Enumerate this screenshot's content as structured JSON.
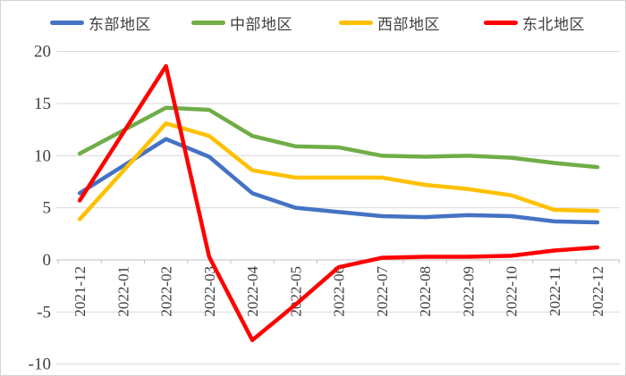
{
  "chart_data": {
    "type": "line",
    "title": "",
    "xlabel": "",
    "ylabel": "",
    "categories": [
      "2021-12",
      "2022-01",
      "2022-02",
      "2022-03",
      "2022-04",
      "2022-05",
      "2022-06",
      "2022-07",
      "2022-08",
      "2022-09",
      "2022-10",
      "2022-11",
      "2022-12"
    ],
    "series": [
      {
        "name": "东部地区",
        "color": "#4472C4",
        "values": [
          6.4,
          null,
          11.6,
          9.9,
          6.4,
          5.0,
          4.6,
          4.2,
          4.1,
          4.3,
          4.2,
          3.7,
          3.6
        ]
      },
      {
        "name": "中部地区",
        "color": "#70AD47",
        "values": [
          10.2,
          null,
          14.6,
          14.4,
          11.9,
          10.9,
          10.8,
          10.0,
          9.9,
          10.0,
          9.8,
          9.3,
          8.9
        ]
      },
      {
        "name": "西部地区",
        "color": "#FFC000",
        "values": [
          3.9,
          null,
          13.1,
          11.9,
          8.6,
          7.9,
          7.9,
          7.9,
          7.2,
          6.8,
          6.2,
          4.8,
          4.7
        ]
      },
      {
        "name": "东北地区",
        "color": "#FF0000",
        "values": [
          5.7,
          null,
          18.6,
          0.3,
          -7.7,
          -4.3,
          -0.7,
          0.2,
          0.3,
          0.3,
          0.4,
          0.9,
          1.2
        ]
      }
    ],
    "ylim": [
      -10,
      20
    ],
    "yticks": [
      20,
      15,
      10,
      5,
      0,
      -5,
      -10
    ],
    "grid": "horizontal",
    "gridline_color": "#D9D9D9",
    "axis_line_color": "#BFBFBF",
    "label_color": "#404040",
    "legend_position": "top",
    "x_label_rotation": -90
  }
}
